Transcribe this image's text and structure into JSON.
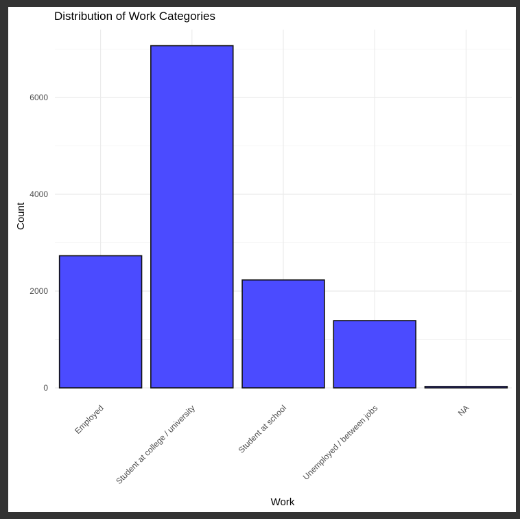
{
  "chart_data": {
    "type": "bar",
    "title": "Distribution of Work Categories",
    "xlabel": "Work",
    "ylabel": "Count",
    "categories": [
      "Employed",
      "Student at college / university",
      "Student at school",
      "Unemployed / between jobs",
      "NA"
    ],
    "values": [
      2730,
      7070,
      2230,
      1390,
      30
    ],
    "yticks": [
      0,
      2000,
      4000,
      6000
    ],
    "ylim": [
      0,
      7400
    ],
    "grid": true,
    "legend": "none",
    "colors": {
      "bar_fill": "#4b4bff",
      "bar_stroke": "#111111",
      "grid": "#ebebeb",
      "text": "#4d4d4d",
      "title": "#000000"
    }
  }
}
